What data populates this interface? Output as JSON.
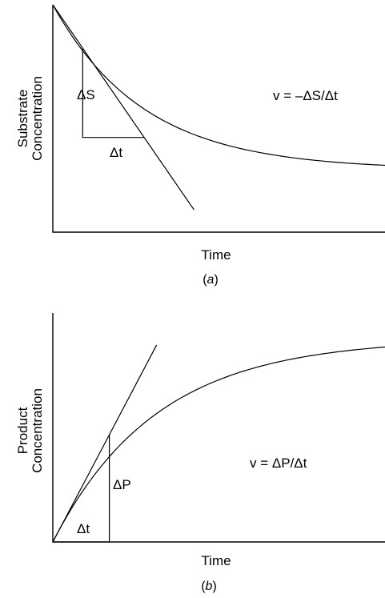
{
  "chart_data": [
    {
      "type": "line",
      "panel_label": "a",
      "xlabel": "Time",
      "ylabel": [
        "Substrate",
        "Concentration"
      ],
      "equation": "v = –ΔS/Δt",
      "delta_y_label": "ΔS",
      "delta_x_label": "Δt",
      "series": [
        {
          "name": "",
          "shape": "exponential-decay",
          "x": [
            0,
            0.5,
            1,
            1.5,
            2,
            2.5,
            3,
            3.5,
            4
          ],
          "y": [
            1.0,
            0.84,
            0.7,
            0.59,
            0.49,
            0.41,
            0.35,
            0.29,
            0.25
          ]
        }
      ],
      "tangent": {
        "x": [
          0,
          1.7
        ],
        "y": [
          1.0,
          0.03
        ]
      },
      "grid": false
    },
    {
      "type": "line",
      "panel_label": "b",
      "xlabel": "Time",
      "ylabel": [
        "Product",
        "Concentration"
      ],
      "equation": "v = ΔP/Δt",
      "delta_y_label": "ΔP",
      "delta_x_label": "Δt",
      "series": [
        {
          "name": "",
          "shape": "saturation-rise",
          "x": [
            0,
            0.5,
            1,
            1.5,
            2,
            2.5,
            3,
            3.5,
            4
          ],
          "y": [
            0.0,
            0.33,
            0.55,
            0.7,
            0.8,
            0.87,
            0.91,
            0.94,
            0.96
          ]
        }
      ],
      "tangent": {
        "x": [
          0,
          1.25
        ],
        "y": [
          0.0,
          0.95
        ]
      },
      "grid": false
    }
  ]
}
